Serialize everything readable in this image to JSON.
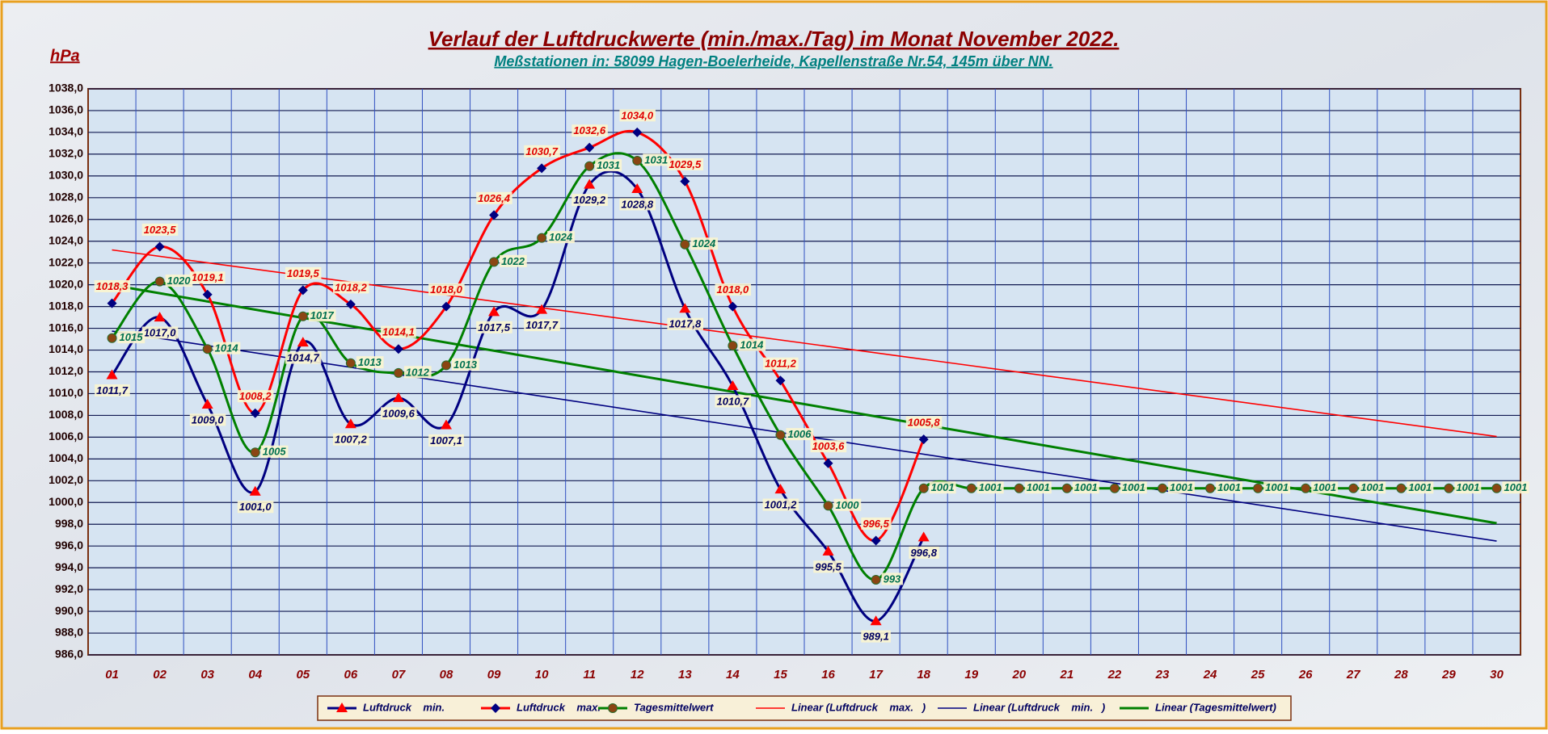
{
  "chart_data": {
    "type": "line",
    "title": "Verlauf der Luftdruckwerte (min./max./Tag) im Monat November 2022.",
    "subtitle": "Meßstationen in: 58099 Hagen-Boelerheide, Kapellenstraße Nr.54, 145m über NN.",
    "y_label": "hPa",
    "categories": [
      "01",
      "02",
      "03",
      "04",
      "05",
      "06",
      "07",
      "08",
      "09",
      "10",
      "11",
      "12",
      "13",
      "14",
      "15",
      "16",
      "17",
      "18",
      "19",
      "20",
      "21",
      "22",
      "23",
      "24",
      "25",
      "26",
      "27",
      "28",
      "29",
      "30"
    ],
    "ylim": [
      986,
      1038
    ],
    "yticks": [
      {
        "value": 986,
        "label": "986,0"
      },
      {
        "value": 988,
        "label": "988,0"
      },
      {
        "value": 990,
        "label": "990,0"
      },
      {
        "value": 992,
        "label": "992,0"
      },
      {
        "value": 994,
        "label": "994,0"
      },
      {
        "value": 996,
        "label": "996,0"
      },
      {
        "value": 998,
        "label": "998,0"
      },
      {
        "value": 1000,
        "label": "1000,0"
      },
      {
        "value": 1002,
        "label": "1002,0"
      },
      {
        "value": 1004,
        "label": "1004,0"
      },
      {
        "value": 1006,
        "label": "1006,0"
      },
      {
        "value": 1008,
        "label": "1008,0"
      },
      {
        "value": 1010,
        "label": "1010,0"
      },
      {
        "value": 1012,
        "label": "1012,0"
      },
      {
        "value": 1014,
        "label": "1014,0"
      },
      {
        "value": 1016,
        "label": "1016,0"
      },
      {
        "value": 1018,
        "label": "1018,0"
      },
      {
        "value": 1020,
        "label": "1020,0"
      },
      {
        "value": 1022,
        "label": "1022,0"
      },
      {
        "value": 1024,
        "label": "1024,0"
      },
      {
        "value": 1026,
        "label": "1026,0"
      },
      {
        "value": 1028,
        "label": "1028,0"
      },
      {
        "value": 1030,
        "label": "1030,0"
      },
      {
        "value": 1032,
        "label": "1032,0"
      },
      {
        "value": 1034,
        "label": "1034,0"
      },
      {
        "value": 1036,
        "label": "1036,0"
      },
      {
        "value": 1038,
        "label": "1038,0"
      }
    ],
    "grid": true,
    "series": [
      {
        "name": "Luftdruck    min.",
        "color": "#000080",
        "marker": "triangle",
        "marker_color": "#ff0000",
        "label_color": "#000060",
        "label_position": "below",
        "values": [
          1011.7,
          1017.0,
          1009.0,
          1001.0,
          1014.7,
          1007.2,
          1009.6,
          1007.1,
          1017.5,
          1017.7,
          1029.2,
          1028.8,
          1017.8,
          1010.7,
          1001.2,
          995.5,
          989.1,
          996.8,
          null,
          null,
          null,
          null,
          null,
          null,
          null,
          null,
          null,
          null,
          null,
          null
        ],
        "value_labels": [
          "1011,7",
          "1017,0",
          "1009,0",
          "1001,0",
          "1014,7",
          "1007,2",
          "1009,6",
          "1007,1",
          "1017,5",
          "1017,7",
          "1029,2",
          "1028,8",
          "1017,8",
          "1010,7",
          "1001,2",
          "995,5",
          "989,1",
          "996,8",
          null,
          null,
          null,
          null,
          null,
          null,
          null,
          null,
          null,
          null,
          null,
          null
        ],
        "trendline": {
          "name": "Linear (Luftdruck    min.   )",
          "color": "#000080"
        }
      },
      {
        "name": "Luftdruck    max.",
        "color": "#ff0000",
        "marker": "diamond",
        "marker_color": "#000080",
        "label_color": "#e00000",
        "label_position": "above",
        "values": [
          1018.3,
          1023.5,
          1019.1,
          1008.2,
          1019.5,
          1018.2,
          1014.1,
          1018.0,
          1026.4,
          1030.7,
          1032.6,
          1034.0,
          1029.5,
          1018.0,
          1011.2,
          1003.6,
          996.5,
          1005.8,
          null,
          null,
          null,
          null,
          null,
          null,
          null,
          null,
          null,
          null,
          null,
          null
        ],
        "value_labels": [
          "1018,3",
          "1023,5",
          "1019,1",
          "1008,2",
          "1019,5",
          "1018,2",
          "1014,1",
          "1018,0",
          "1026,4",
          "1030,7",
          "1032,6",
          "1034,0",
          "1029,5",
          "1018,0",
          "1011,2",
          "1003,6",
          "996,5",
          "1005,8",
          null,
          null,
          null,
          null,
          null,
          null,
          null,
          null,
          null,
          null,
          null,
          null
        ],
        "trendline": {
          "name": "Linear (Luftdruck    max.   )",
          "color": "#ff0000"
        }
      },
      {
        "name": "Tagesmittelwert",
        "color": "#008000",
        "marker": "circle",
        "marker_color": "#8b4513",
        "label_color": "#007050",
        "label_position": "right",
        "values": [
          1015.1,
          1020.3,
          1014.1,
          1004.6,
          1017.1,
          1012.8,
          1011.9,
          1012.6,
          1022.1,
          1024.3,
          1030.9,
          1031.4,
          1023.7,
          1014.4,
          1006.2,
          999.7,
          992.9,
          1001.3,
          1001.3,
          1001.3,
          1001.3,
          1001.3,
          1001.3,
          1001.3,
          1001.3,
          1001.3,
          1001.3,
          1001.3,
          1001.3,
          1001.3
        ],
        "value_labels": [
          "1015",
          "1020",
          "1014",
          "1005",
          "1017",
          "1013",
          "1012",
          "1013",
          "1022",
          "1024",
          "1031",
          "1031",
          "1024",
          "1014",
          "1006",
          "1000",
          "993",
          "1001",
          "1001",
          "1001",
          "1001",
          "1001",
          "1001",
          "1001",
          "1001",
          "1001",
          "1001",
          "1001",
          "1001",
          "1001"
        ],
        "trendline": {
          "name": "Linear (Tagesmittelwert)",
          "color": "#008000"
        }
      }
    ],
    "legend_order": [
      "min",
      "max",
      "mean",
      "trend-max",
      "trend-min",
      "trend-mean"
    ]
  }
}
